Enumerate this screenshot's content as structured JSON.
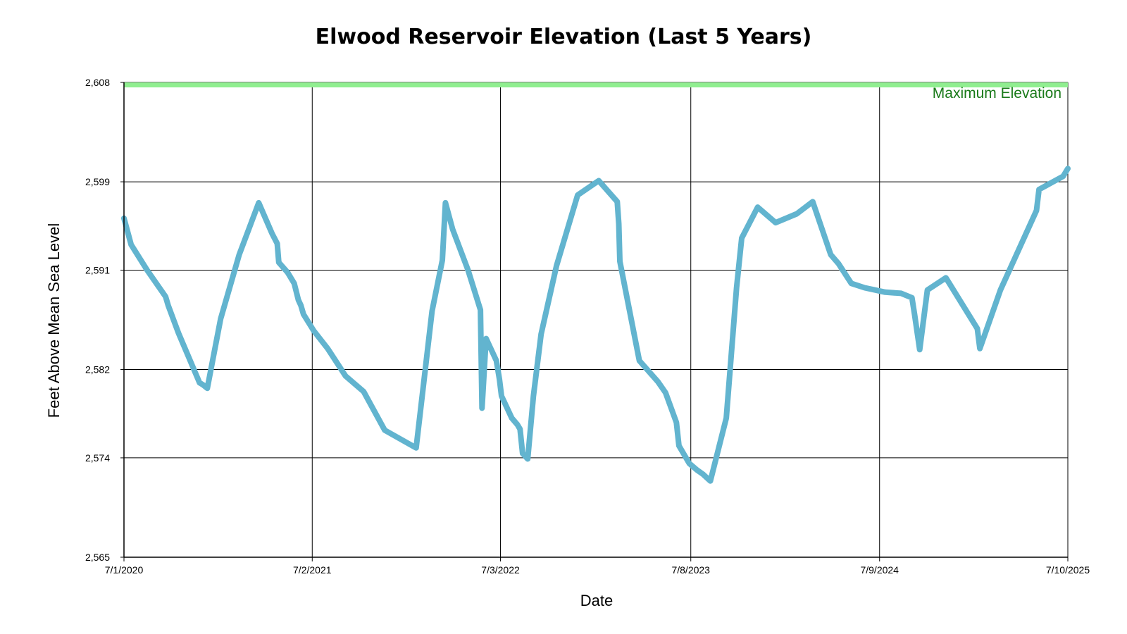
{
  "chart_data": {
    "type": "line",
    "title": "Elwood Reservoir Elevation (Last 5 Years)",
    "xlabel": "Date",
    "ylabel": "Feet Above Mean Sea Level",
    "xlim": [
      "2020-07-01",
      "2025-07-10"
    ],
    "ylim": [
      2565,
      2608
    ],
    "grid": true,
    "x_tick_labels": [
      "7/1/2020",
      "7/2/2021",
      "7/3/2022",
      "7/8/2023",
      "7/9/2024",
      "7/10/2025"
    ],
    "x_ticks": [
      "2020-07-01",
      "2021-07-02",
      "2022-07-03",
      "2023-07-08",
      "2024-07-09",
      "2025-07-10"
    ],
    "y_tick_labels": [
      "2,565",
      "2,574",
      "2,582",
      "2,591",
      "2,599",
      "2,608"
    ],
    "y_ticks": [
      2565,
      2574,
      2582,
      2591,
      2599,
      2608
    ],
    "reference_band": {
      "label": "Maximum Elevation",
      "from": 2607.55,
      "to": 2608,
      "fill": "#90ee90",
      "label_color": "#1a7a1a"
    },
    "series": [
      {
        "color": "#62b4cf",
        "x": [
          "2020-07-01",
          "2020-07-15",
          "2020-08-15",
          "2020-09-20",
          "2020-09-25",
          "2020-10-15",
          "2020-11-25",
          "2020-12-02",
          "2020-12-10",
          "2021-01-05",
          "2021-02-10",
          "2021-03-20",
          "2021-04-15",
          "2021-04-25",
          "2021-04-28",
          "2021-05-15",
          "2021-05-28",
          "2021-06-05",
          "2021-06-10",
          "2021-06-15",
          "2021-07-05",
          "2021-08-01",
          "2021-09-05",
          "2021-10-10",
          "2021-11-20",
          "2022-01-20",
          "2022-02-20",
          "2022-03-12",
          "2022-03-18",
          "2022-04-01",
          "2022-05-01",
          "2022-05-25",
          "2022-05-28",
          "2022-05-30",
          "2022-06-05",
          "2022-06-25",
          "2022-07-01",
          "2022-07-05",
          "2022-07-25",
          "2022-08-05",
          "2022-08-10",
          "2022-08-15",
          "2022-08-25",
          "2022-09-05",
          "2022-09-20",
          "2022-10-20",
          "2022-11-30",
          "2023-01-10",
          "2023-02-15",
          "2023-02-18",
          "2023-02-20",
          "2023-03-30",
          "2023-05-05",
          "2023-05-20",
          "2023-06-10",
          "2023-06-15",
          "2023-07-05",
          "2023-07-20",
          "2023-08-01",
          "2023-08-15",
          "2023-09-15",
          "2023-10-05",
          "2023-10-15",
          "2023-11-15",
          "2023-12-20",
          "2024-01-30",
          "2024-03-01",
          "2024-04-05",
          "2024-04-20",
          "2024-05-15",
          "2024-06-10",
          "2024-07-20",
          "2024-08-20",
          "2024-09-10",
          "2024-09-15",
          "2024-09-25",
          "2024-10-10",
          "2024-11-15",
          "2025-01-15",
          "2025-01-20",
          "2025-03-01",
          "2025-05-10",
          "2025-05-15",
          "2025-07-01",
          "2025-07-10"
        ],
        "y": [
          2595.7,
          2593.3,
          2591.0,
          2588.6,
          2587.8,
          2585.3,
          2580.8,
          2580.6,
          2580.3,
          2586.6,
          2592.4,
          2597.1,
          2594.3,
          2593.4,
          2591.7,
          2590.8,
          2589.8,
          2588.3,
          2587.8,
          2587.0,
          2585.5,
          2583.9,
          2581.4,
          2580.0,
          2576.5,
          2574.9,
          2587.3,
          2591.9,
          2597.1,
          2594.7,
          2591.0,
          2587.4,
          2578.5,
          2580.0,
          2584.8,
          2582.8,
          2581.1,
          2579.6,
          2577.6,
          2577.0,
          2576.6,
          2574.4,
          2573.9,
          2579.6,
          2585.2,
          2591.4,
          2597.8,
          2599.1,
          2597.2,
          2595.2,
          2591.8,
          2582.8,
          2580.9,
          2579.9,
          2577.2,
          2575.1,
          2573.5,
          2572.9,
          2572.5,
          2571.9,
          2577.6,
          2589.4,
          2593.9,
          2596.7,
          2595.3,
          2596.1,
          2597.2,
          2592.4,
          2591.6,
          2589.8,
          2589.4,
          2589.0,
          2588.9,
          2588.5,
          2587.0,
          2583.8,
          2589.2,
          2590.3,
          2585.7,
          2583.9,
          2589.2,
          2596.4,
          2598.3,
          2599.5,
          2600.2
        ]
      }
    ]
  }
}
